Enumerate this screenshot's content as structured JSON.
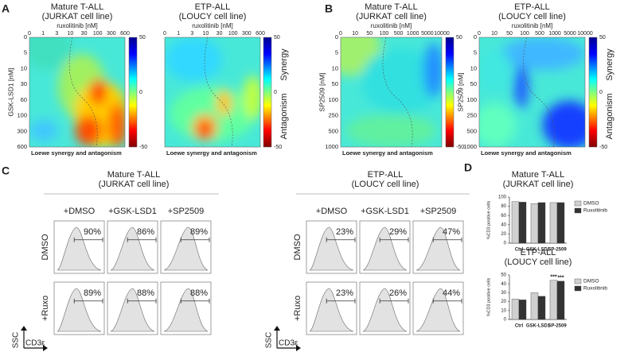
{
  "panels": [
    {
      "label": "A",
      "colorbar_labels": [
        "Synergy",
        "Antagonism"
      ],
      "plots": [
        {
          "title": "Mature T-ALL",
          "subtitle": "(JURKAT cell line)",
          "x_label": "ruxolitinib [nM]",
          "x_ticks": [
            "0",
            "1",
            "3",
            "10",
            "30",
            "100",
            "300",
            "600"
          ],
          "y_label": "GSK-LSD1 [nM]",
          "y_ticks": [
            "0",
            "5",
            "10",
            "30",
            "60",
            "100",
            "300",
            "600"
          ],
          "colorbar_ticks": [
            "50",
            "0",
            "-50"
          ],
          "footer": "Loewe synergy and antagonism"
        },
        {
          "title": "ETP-ALL",
          "subtitle": "(LOUCY cell line)",
          "x_label": "ruxolitinib [nM]",
          "x_ticks": [
            "0",
            "1",
            "3",
            "10",
            "30",
            "100",
            "300",
            "600"
          ],
          "y_ticks": [],
          "colorbar_ticks": [
            "50",
            "0",
            "-50"
          ],
          "footer": "Loewe synergy and antagonism"
        }
      ]
    },
    {
      "label": "B",
      "colorbar_labels": [
        "Synergy",
        "Antagonism"
      ],
      "plots": [
        {
          "title": "Mature T-ALL",
          "subtitle": "(JURKAT cell line)",
          "x_label": "ruxolitinib [nM]",
          "x_ticks": [
            "0",
            "10",
            "50",
            "100",
            "500",
            "1000",
            "5000",
            "10000"
          ],
          "y_label": "SP2509 [nM]",
          "y_ticks": [
            "0",
            "5",
            "10",
            "50",
            "100",
            "250",
            "500",
            "1000"
          ],
          "colorbar_ticks": [
            "50",
            "0",
            "-50"
          ],
          "footer": "Loewe synergy and antagonism"
        },
        {
          "title": "ETP-ALL",
          "subtitle": "(LOUCY cell line)",
          "x_label": "ruxolitinib [nM]",
          "x_ticks": [
            "0",
            "10",
            "50",
            "100",
            "500",
            "1000",
            "5000",
            "10000"
          ],
          "y_label": "SP2509 [nM]",
          "y_ticks": [
            "0",
            "5",
            "10",
            "50",
            "100",
            "250",
            "500",
            "1000"
          ],
          "colorbar_ticks": [
            "50",
            "0",
            "-50"
          ],
          "footer": "Loewe synergy and antagonism"
        }
      ]
    }
  ],
  "flow": {
    "label": "C",
    "axis_labels": [
      "SSC",
      "CD3ε"
    ],
    "groups": [
      {
        "title": "Mature T-ALL",
        "subtitle": "(JURKAT cell line)",
        "columns": [
          "+DMSO",
          "+GSK-LSD1",
          "+SP2509"
        ],
        "rows": [
          "DMSO",
          "+Ruxo"
        ],
        "percentages": [
          [
            "90%",
            "86%",
            "89%"
          ],
          [
            "89%",
            "88%",
            "88%"
          ]
        ]
      },
      {
        "title": "ETP-ALL",
        "subtitle": "(LOUCY cell line)",
        "columns": [
          "+DMSO",
          "+GSK-LSD1",
          "+SP2509"
        ],
        "rows": [
          "DMSO",
          "+Ruxo"
        ],
        "percentages": [
          [
            "23%",
            "29%",
            "47%"
          ],
          [
            "23%",
            "26%",
            "44%"
          ]
        ]
      }
    ]
  },
  "panel_d_label": "D",
  "chart_data": [
    {
      "type": "bar",
      "title": "Mature T-ALL",
      "subtitle": "(JURKAT cell line)",
      "y_label": "%CD3 positive cells",
      "categories": [
        "Ctrl",
        "GSK-LSD1",
        "SP-2509"
      ],
      "series": [
        {
          "name": "DMSO",
          "color": "#d0d0d0",
          "values": [
            90,
            86,
            88
          ]
        },
        {
          "name": "Ruxolitinib",
          "color": "#333333",
          "values": [
            89,
            88,
            88
          ]
        }
      ],
      "ylim": [
        0,
        100
      ],
      "yticks": [
        0,
        20,
        40,
        60,
        80,
        100
      ]
    },
    {
      "type": "bar",
      "title": "ETP-ALL",
      "subtitle": "(LOUCY cell line)",
      "y_label": "%CD3 positive cells",
      "categories": [
        "Ctrl",
        "GSK-LSD1",
        "SP-2509"
      ],
      "series": [
        {
          "name": "DMSO",
          "color": "#d0d0d0",
          "values": [
            23,
            30,
            44
          ],
          "annotations": [
            null,
            null,
            "***"
          ]
        },
        {
          "name": "Ruxolitinib",
          "color": "#333333",
          "values": [
            22,
            26,
            43
          ],
          "annotations": [
            null,
            null,
            "***"
          ]
        }
      ],
      "ylim": [
        0,
        50
      ],
      "yticks": [
        0,
        10,
        20,
        30,
        40,
        50
      ]
    }
  ]
}
